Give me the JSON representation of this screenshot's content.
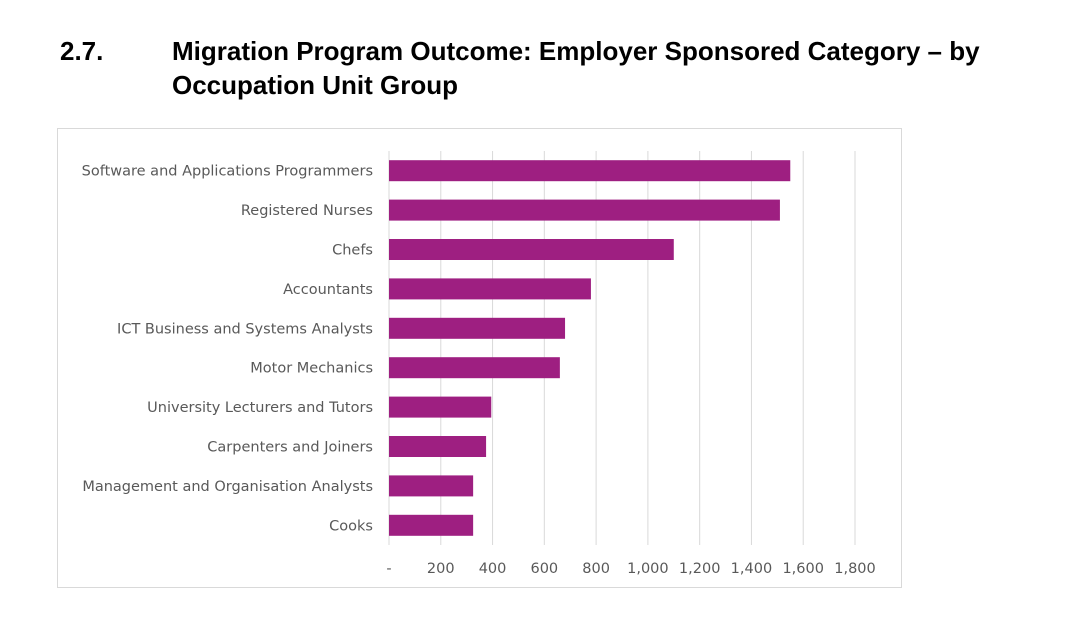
{
  "heading": {
    "number": "2.7.",
    "title": "Migration Program Outcome: Employer Sponsored Category – by Occupation Unit Group"
  },
  "chart_data": {
    "type": "bar",
    "orientation": "horizontal",
    "title": "",
    "xlabel": "",
    "ylabel": "",
    "categories": [
      "Software and Applications Programmers",
      "Registered Nurses",
      "Chefs",
      "Accountants",
      "ICT Business and Systems Analysts",
      "Motor Mechanics",
      "University Lecturers and Tutors",
      "Carpenters and Joiners",
      "Management and Organisation Analysts",
      "Cooks"
    ],
    "values": [
      1550,
      1510,
      1100,
      780,
      680,
      660,
      395,
      375,
      325,
      325
    ],
    "xlim": [
      0,
      1800
    ],
    "x_ticks": [
      0,
      200,
      400,
      600,
      800,
      1000,
      1200,
      1400,
      1600,
      1800
    ],
    "x_tick_labels": [
      "-",
      "200",
      "400",
      "600",
      "800",
      "1,000",
      "1,200",
      "1,400",
      "1,600",
      "1,800"
    ],
    "grid": "vertical",
    "legend": "none",
    "bar_color": "#9e1f81",
    "grid_color": "#d9d9d9",
    "text_color": "#595959"
  }
}
